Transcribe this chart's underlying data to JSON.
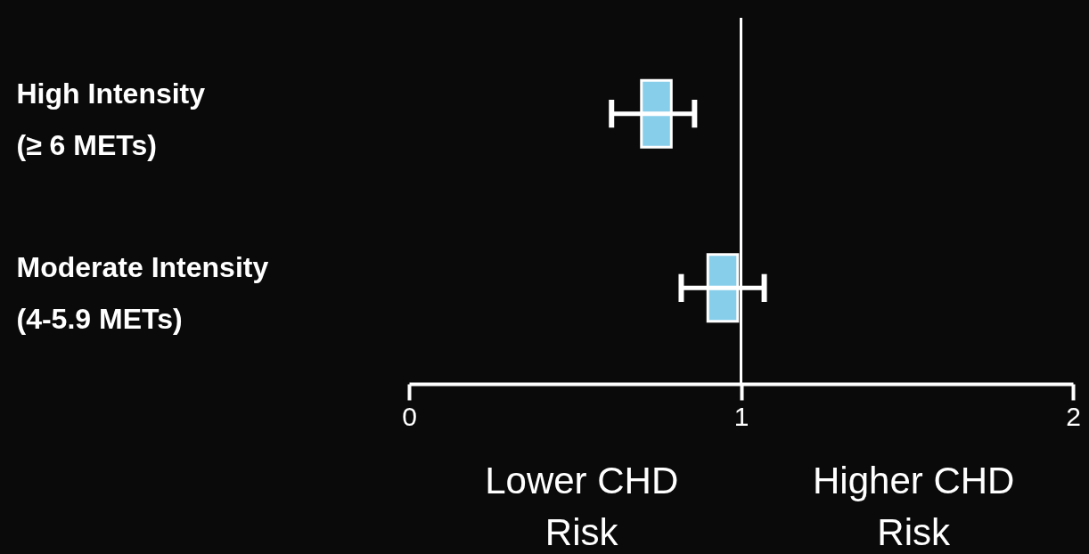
{
  "chart_data": {
    "type": "bar",
    "orientation": "horizontal",
    "categories": [
      "High Intensity\n(≥ 6 METs)",
      "Moderate Intensity\n(4-5.9 METs)"
    ],
    "base": [
      0.7,
      0.9
    ],
    "values": [
      0.09,
      0.09
    ],
    "errors": [
      [
        0.61,
        0.86
      ],
      [
        0.82,
        1.07
      ]
    ],
    "color": "#87ceeb",
    "xlim": [
      0,
      2
    ],
    "xticks": [
      0,
      1,
      2
    ],
    "ref_lines": [
      {
        "axis": "x",
        "value": 1,
        "color": "#ffffff"
      }
    ],
    "annotations": [
      "Lower CHD Risk",
      "Higher CHD Risk"
    ]
  }
}
